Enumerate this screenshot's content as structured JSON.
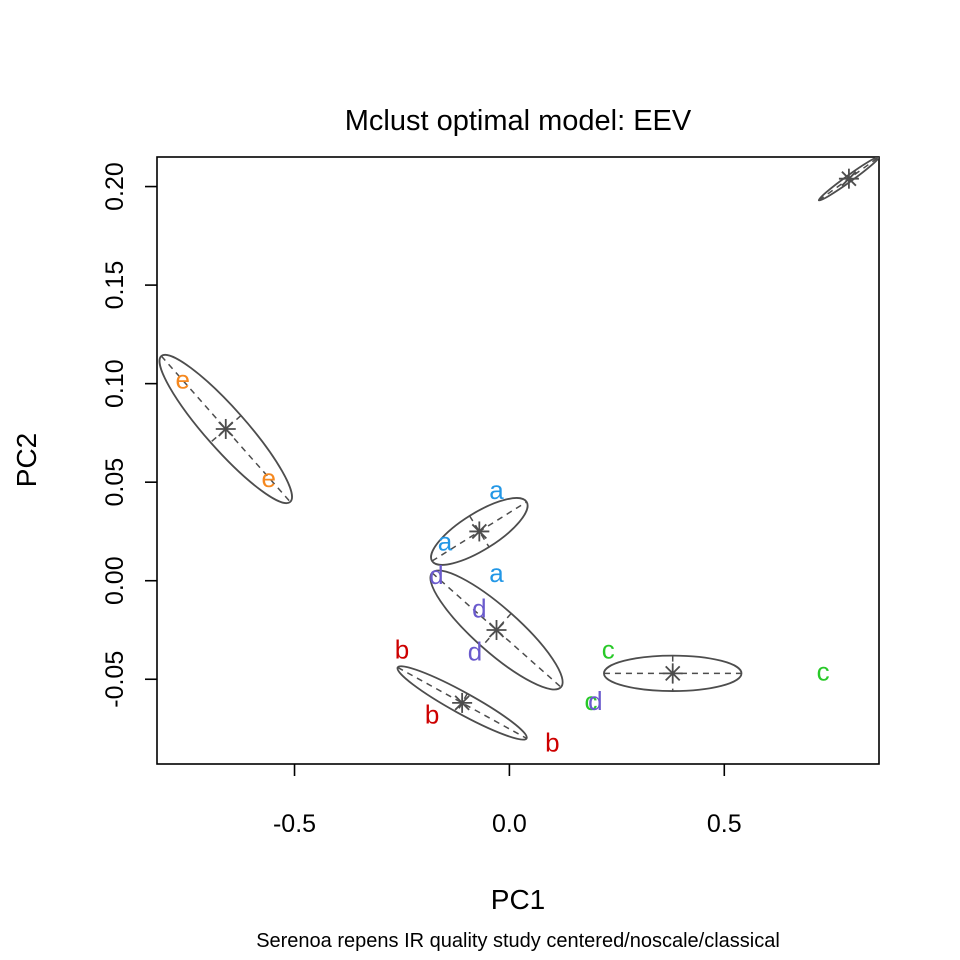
{
  "chart_data": {
    "type": "scatter",
    "title": "Mclust optimal model: EEV",
    "subtitle": "Serenoa repens IR quality study  centered/noscale/classical",
    "xlabel": "PC1",
    "ylabel": "PC2",
    "xlim": [
      -0.82,
      0.86
    ],
    "ylim": [
      -0.093,
      0.215
    ],
    "x_ticks": [
      -0.5,
      0.0,
      0.5
    ],
    "x_tick_labels": [
      "-0.5",
      "0.0",
      "0.5"
    ],
    "y_ticks": [
      -0.05,
      0.0,
      0.05,
      0.1,
      0.15,
      0.2
    ],
    "y_tick_labels": [
      "-0.05",
      "0.00",
      "0.05",
      "0.10",
      "0.15",
      "0.20"
    ],
    "grid": false,
    "legend": "none",
    "colors": {
      "a": "#2297e6",
      "b": "#cd0000",
      "c": "#28c928",
      "d": "#6a5acd",
      "e": "#f5881f",
      "ellipse": "#4d4d4d"
    },
    "points": [
      {
        "label": "a",
        "x": -0.03,
        "y": 0.046
      },
      {
        "label": "a",
        "x": -0.15,
        "y": 0.02
      },
      {
        "label": "a",
        "x": -0.03,
        "y": 0.004
      },
      {
        "label": "b",
        "x": -0.25,
        "y": -0.035
      },
      {
        "label": "b",
        "x": -0.18,
        "y": -0.068
      },
      {
        "label": "b",
        "x": 0.1,
        "y": -0.082
      },
      {
        "label": "c",
        "x": 0.23,
        "y": -0.035
      },
      {
        "label": "c",
        "x": 0.73,
        "y": -0.046
      },
      {
        "label": "c",
        "x": 0.19,
        "y": -0.061
      },
      {
        "label": "d",
        "x": 0.2,
        "y": -0.061
      },
      {
        "label": "d",
        "x": -0.17,
        "y": 0.003
      },
      {
        "label": "d",
        "x": -0.07,
        "y": -0.014
      },
      {
        "label": "d",
        "x": -0.08,
        "y": -0.036
      },
      {
        "label": "e",
        "x": -0.76,
        "y": 0.102
      },
      {
        "label": "e",
        "x": -0.56,
        "y": 0.052
      }
    ],
    "clusters": [
      {
        "center": [
          -0.07,
          0.025
        ],
        "axis_end": [
          0.04,
          0.04
        ],
        "minor_end": [
          -0.07,
          0.014
        ]
      },
      {
        "center": [
          -0.11,
          -0.062
        ],
        "axis_end": [
          0.04,
          -0.08
        ],
        "minor_end": [
          -0.1,
          -0.057
        ]
      },
      {
        "center": [
          0.38,
          -0.047
        ],
        "axis_end": [
          0.54,
          -0.047
        ],
        "minor_end": [
          0.38,
          -0.038
        ]
      },
      {
        "center": [
          -0.03,
          -0.025
        ],
        "axis_end": [
          0.12,
          -0.054
        ],
        "minor_end": [
          -0.03,
          -0.04
        ]
      },
      {
        "center": [
          -0.66,
          0.077
        ],
        "axis_end": [
          -0.51,
          0.04
        ],
        "minor_end": [
          -0.65,
          0.059
        ]
      },
      {
        "center": [
          0.79,
          0.204
        ],
        "axis_end": [
          0.86,
          0.215
        ],
        "minor_end": [
          0.79,
          0.202
        ]
      }
    ]
  }
}
